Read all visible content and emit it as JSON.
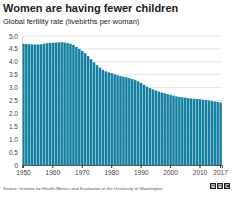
{
  "chart_data": {
    "type": "bar",
    "title": "Women are having fewer children",
    "subtitle": "Global fertility rate (livebirths per woman)",
    "categories": [
      "1950",
      null,
      null,
      null,
      null,
      null,
      null,
      null,
      null,
      null,
      "1960",
      null,
      null,
      null,
      null,
      null,
      null,
      null,
      null,
      null,
      "1970",
      null,
      null,
      null,
      null,
      null,
      null,
      null,
      null,
      null,
      "1980",
      null,
      null,
      null,
      null,
      null,
      null,
      null,
      null,
      null,
      "1990",
      null,
      null,
      null,
      null,
      null,
      null,
      null,
      null,
      null,
      "2000",
      null,
      null,
      null,
      null,
      null,
      null,
      null,
      null,
      null,
      "2010",
      null,
      null,
      null,
      null,
      null,
      null,
      "2017"
    ],
    "values": [
      4.7,
      4.69,
      4.68,
      4.67,
      4.67,
      4.67,
      4.68,
      4.7,
      4.72,
      4.73,
      4.74,
      4.75,
      4.75,
      4.76,
      4.75,
      4.73,
      4.7,
      4.65,
      4.58,
      4.5,
      4.42,
      4.33,
      4.22,
      4.1,
      3.98,
      3.87,
      3.77,
      3.69,
      3.63,
      3.59,
      3.56,
      3.52,
      3.48,
      3.45,
      3.42,
      3.4,
      3.37,
      3.33,
      3.29,
      3.24,
      3.18,
      3.11,
      3.04,
      2.98,
      2.93,
      2.89,
      2.85,
      2.81,
      2.78,
      2.75,
      2.72,
      2.69,
      2.66,
      2.64,
      2.62,
      2.61,
      2.59,
      2.58,
      2.57,
      2.56,
      2.55,
      2.53,
      2.52,
      2.5,
      2.48,
      2.46,
      2.44,
      2.42
    ],
    "color": "#1380a1",
    "ylim": [
      0,
      5
    ],
    "yticks": [
      0,
      0.5,
      {
        "value": 1,
        "label": "1.0"
      },
      {
        "value": 1.5,
        "label": "1.5"
      },
      {
        "value": 2,
        "label": "2.0"
      },
      {
        "value": 2.5,
        "label": "2.5"
      },
      {
        "value": 3,
        "label": "3.0"
      },
      {
        "value": 3.5,
        "label": "3.5"
      },
      {
        "value": 4,
        "label": "4.0"
      },
      {
        "value": 4.5,
        "label": "4.5"
      },
      {
        "value": 5,
        "label": "5.0"
      }
    ],
    "grid": true,
    "source": "Source: Institute for Health Metrics and Evaluation at the University of Washington",
    "logo": "BBC"
  }
}
